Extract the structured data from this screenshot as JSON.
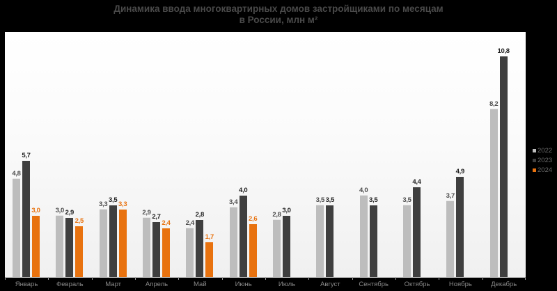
{
  "title": {
    "line1": "Динамика ввода многоквартирных домов застройщиками по месяцам",
    "line2": "в России, млн м²"
  },
  "legend": [
    {
      "label": "2022",
      "color": "#bdbdbd"
    },
    {
      "label": "2023",
      "color": "#3f3f3f"
    },
    {
      "label": "2024",
      "color": "#e8720f"
    }
  ],
  "months": [
    {
      "label": "Январь",
      "v2022": "4,8",
      "v2023": "5,7",
      "v2024": "3,0"
    },
    {
      "label": "Февраль",
      "v2022": "3,0",
      "v2023": "2,9",
      "v2024": "2,5"
    },
    {
      "label": "Март",
      "v2022": "3,3",
      "v2023": "3,5",
      "v2024": "3,3"
    },
    {
      "label": "Апрель",
      "v2022": "2,9",
      "v2023": "2,7",
      "v2024": "2,4"
    },
    {
      "label": "Май",
      "v2022": "2,4",
      "v2023": "2,8",
      "v2024": "1,7"
    },
    {
      "label": "Июнь",
      "v2022": "3,4",
      "v2023": "4,0",
      "v2024": "2,6"
    },
    {
      "label": "Июль",
      "v2022": "2,8",
      "v2023": "3,0",
      "v2024": null
    },
    {
      "label": "Август",
      "v2022": "3,5",
      "v2023": "3,5",
      "v2024": null
    },
    {
      "label": "Сентябрь",
      "v2022": "4,0",
      "v2023": "3,5",
      "v2024": null
    },
    {
      "label": "Октябрь",
      "v2022": "3,5",
      "v2023": "4,4",
      "v2024": null
    },
    {
      "label": "Ноябрь",
      "v2022": "3,7",
      "v2023": "4,9",
      "v2024": null
    },
    {
      "label": "Декабрь",
      "v2022": "8,2",
      "v2023": "10,8",
      "v2024": null
    }
  ],
  "chart_data": {
    "type": "bar",
    "title": "Динамика ввода многоквартирных домов застройщиками по месяцам в России, млн м²",
    "xlabel": "",
    "ylabel": "млн м²",
    "categories": [
      "Январь",
      "Февраль",
      "Март",
      "Апрель",
      "Май",
      "Июнь",
      "Июль",
      "Август",
      "Сентябрь",
      "Октябрь",
      "Ноябрь",
      "Декабрь"
    ],
    "series": [
      {
        "name": "2022",
        "color": "#bdbdbd",
        "values": [
          4.8,
          3.0,
          3.3,
          2.9,
          2.4,
          3.4,
          2.8,
          3.5,
          4.0,
          3.5,
          3.7,
          8.2
        ]
      },
      {
        "name": "2023",
        "color": "#3f3f3f",
        "values": [
          5.7,
          2.9,
          3.5,
          2.7,
          2.8,
          4.0,
          3.0,
          3.5,
          3.5,
          4.4,
          4.9,
          10.8
        ]
      },
      {
        "name": "2024",
        "color": "#e8720f",
        "values": [
          3.0,
          2.5,
          3.3,
          2.4,
          1.7,
          2.6,
          null,
          null,
          null,
          null,
          null,
          null
        ]
      }
    ],
    "ylim": [
      0,
      12
    ],
    "grid": false,
    "legend_position": "right",
    "data_labels": true
  }
}
